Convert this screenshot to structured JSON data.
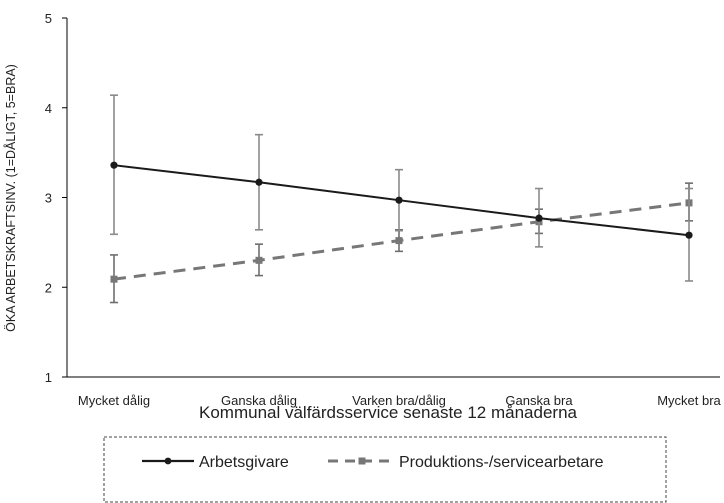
{
  "chart_data": {
    "type": "line",
    "title": "",
    "xlabel": "Kommunal välfärdsservice senaste 12 månaderna",
    "ylabel": "ÖKA ARBETSKRAFTSINV. (1=DÅLIGT, 5=BRA)",
    "categories": [
      "Mycket dålig",
      "Ganska dålig",
      "Varken bra/dålig",
      "Ganska bra",
      "Mycket bra"
    ],
    "ylim": [
      1,
      5
    ],
    "yticks": [
      "1",
      "2",
      "3",
      "4",
      "5"
    ],
    "grid": false,
    "legend_position": "bottom",
    "series": [
      {
        "name": "Arbetsgivare",
        "style": "solid",
        "color": "#1a1a1a",
        "values": [
          3.36,
          3.17,
          2.97,
          2.77,
          2.58
        ],
        "err_low": [
          2.59,
          2.64,
          2.63,
          2.45,
          2.07
        ],
        "err_high": [
          4.14,
          3.7,
          3.31,
          3.1,
          3.1
        ]
      },
      {
        "name": "Produktions-/servicearbetare",
        "style": "dashed",
        "color": "#777777",
        "values": [
          2.09,
          2.3,
          2.52,
          2.73,
          2.94
        ],
        "err_low": [
          1.83,
          2.13,
          2.4,
          2.6,
          2.74
        ],
        "err_high": [
          2.36,
          2.48,
          2.64,
          2.87,
          3.16
        ]
      }
    ]
  }
}
